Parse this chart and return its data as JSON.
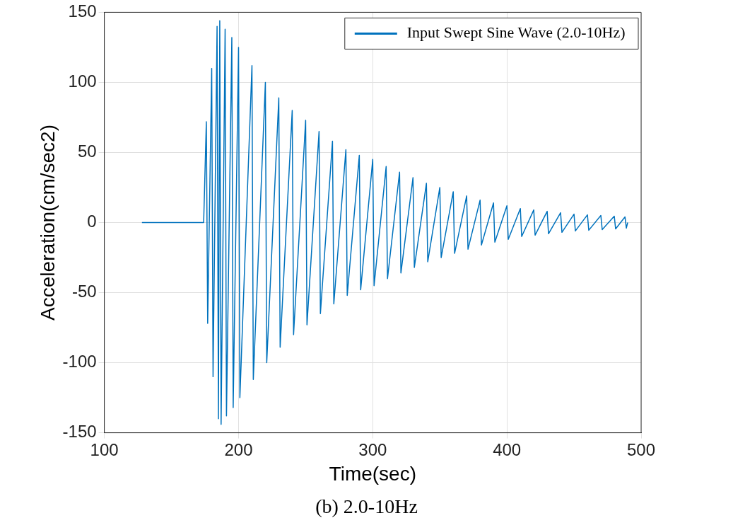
{
  "chart_data": {
    "type": "line",
    "xlabel": "Time(sec)",
    "ylabel": "Acceleration(cm/sec2)",
    "annotations": [
      "(b) 2.0-10Hz"
    ],
    "xlim": [
      100,
      500
    ],
    "xticks": [
      100,
      200,
      300,
      400,
      500
    ],
    "ylim": [
      -150,
      150
    ],
    "yticks": [
      -150,
      -100,
      -50,
      0,
      50,
      100,
      150
    ],
    "grid": true,
    "legend": "top right",
    "marker": "none",
    "line_style": "solid",
    "series": [
      {
        "name": "Input Swept Sine Wave (2.0-10Hz)",
        "color": "#0072bd",
        "x": [
          128,
          174,
          176,
          177,
          180,
          181,
          184,
          185,
          186,
          187,
          190,
          191,
          195,
          196,
          200,
          201,
          210,
          211,
          220,
          221,
          230,
          231,
          240,
          241,
          250,
          251,
          260,
          261,
          270,
          271,
          280,
          281,
          290,
          291,
          300,
          301,
          310,
          311,
          320,
          321,
          330,
          331,
          340,
          341,
          350,
          351,
          360,
          361,
          370,
          371,
          380,
          381,
          390,
          391,
          400,
          401,
          410,
          411,
          420,
          421,
          430,
          431,
          440,
          441,
          450,
          451,
          460,
          461,
          470,
          471,
          480,
          481,
          488,
          489,
          490
        ],
        "values": [
          0,
          0,
          72,
          -72,
          110,
          -110,
          140,
          -140,
          144,
          -144,
          138,
          -138,
          132,
          -132,
          125,
          -125,
          112,
          -112,
          100,
          -100,
          89,
          -89,
          80,
          -80,
          73,
          -73,
          65,
          -65,
          58,
          -58,
          52,
          -52,
          48,
          -48,
          45,
          -45,
          40,
          -40,
          36,
          -36,
          32,
          -32,
          28,
          -28,
          25,
          -25,
          22,
          -22,
          19,
          -19,
          16,
          -16,
          14,
          -14,
          12,
          -12,
          10,
          -10,
          9,
          -9,
          8,
          -8,
          7,
          -7,
          6,
          -6,
          5.5,
          -5.5,
          5,
          -5,
          4.5,
          -4.5,
          4,
          -4,
          0
        ]
      }
    ]
  }
}
